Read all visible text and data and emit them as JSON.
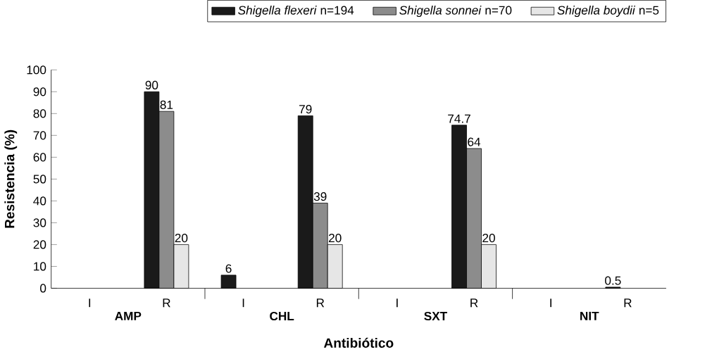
{
  "chart_data": {
    "type": "bar",
    "xlabel": "Antibiótico",
    "ylabel": "Resistencia (%)",
    "categories": [
      "I",
      "R",
      "I",
      "R",
      "I",
      "R",
      "I",
      "R"
    ],
    "annotations": [
      "AMP",
      "CHL",
      "SXT",
      "NIT"
    ],
    "series": [
      {
        "name": "*Shigella flexeri* n=194",
        "color": "#1a1a1a",
        "values": [
          null,
          90,
          6,
          79,
          null,
          74.7,
          null,
          0.5
        ],
        "value_labels": [
          null,
          "90",
          "6",
          "79",
          null,
          "74.7",
          null,
          "0.5"
        ]
      },
      {
        "name": "*Shigella sonnei* n=70",
        "color": "#8c8c8c",
        "values": [
          null,
          81,
          null,
          39,
          null,
          64,
          null,
          null
        ],
        "value_labels": [
          null,
          "81",
          null,
          "39",
          null,
          "64",
          null,
          null
        ]
      },
      {
        "name": "*Shigella boydii* n=5",
        "color": "#e6e6e6",
        "values": [
          null,
          20,
          null,
          20,
          null,
          20,
          null,
          null
        ],
        "value_labels": [
          null,
          "20",
          null,
          "20",
          null,
          "20",
          null,
          null
        ]
      }
    ],
    "ylim": [
      0,
      100
    ],
    "yticks": [
      0,
      10,
      20,
      30,
      40,
      50,
      60,
      70,
      80,
      90,
      100
    ],
    "grid": false,
    "legend": "top right"
  }
}
